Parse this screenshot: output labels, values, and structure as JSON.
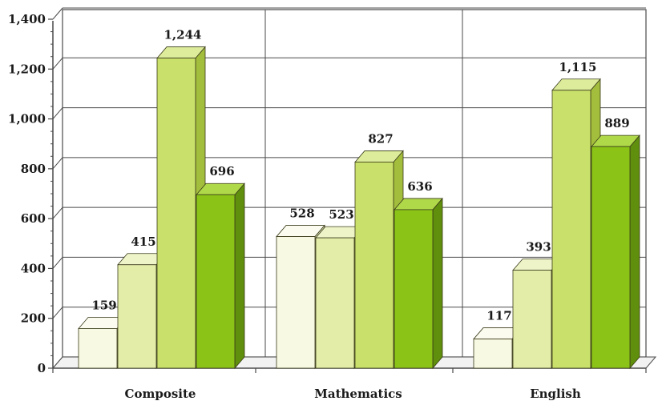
{
  "chart_data": {
    "type": "bar",
    "categories": [
      "Composite",
      "Mathematics",
      "English"
    ],
    "series": [
      {
        "values": [
          159,
          528,
          117
        ]
      },
      {
        "values": [
          415,
          523,
          393
        ]
      },
      {
        "values": [
          1244,
          827,
          1115
        ]
      },
      {
        "values": [
          696,
          636,
          889
        ]
      }
    ],
    "data_labels": [
      [
        "159",
        "528",
        "117"
      ],
      [
        "415",
        "523",
        "393"
      ],
      [
        "1,244",
        "827",
        "1,115"
      ],
      [
        "696",
        "636",
        "889"
      ]
    ],
    "y_ticks": [
      0,
      200,
      400,
      600,
      800,
      1000,
      1200,
      1400
    ],
    "y_tick_labels": [
      "0",
      "200",
      "400",
      "600",
      "800",
      "1,000",
      "1,200",
      "1,400"
    ],
    "ylim": [
      0,
      1400
    ],
    "grid": true,
    "legend": "none",
    "colors": {
      "series_front": [
        "#f7f9e2",
        "#e4eda8",
        "#c9e06a",
        "#8bc417"
      ],
      "series_top": [
        "#fbfcef",
        "#eef4c8",
        "#dcec9a",
        "#b0d94a"
      ],
      "series_side": [
        "#d8dfb0",
        "#c4d07c",
        "#a3bd3c",
        "#5f8f0c"
      ],
      "outline": "#3a3a1a",
      "grid": "#4a4a4a"
    }
  }
}
